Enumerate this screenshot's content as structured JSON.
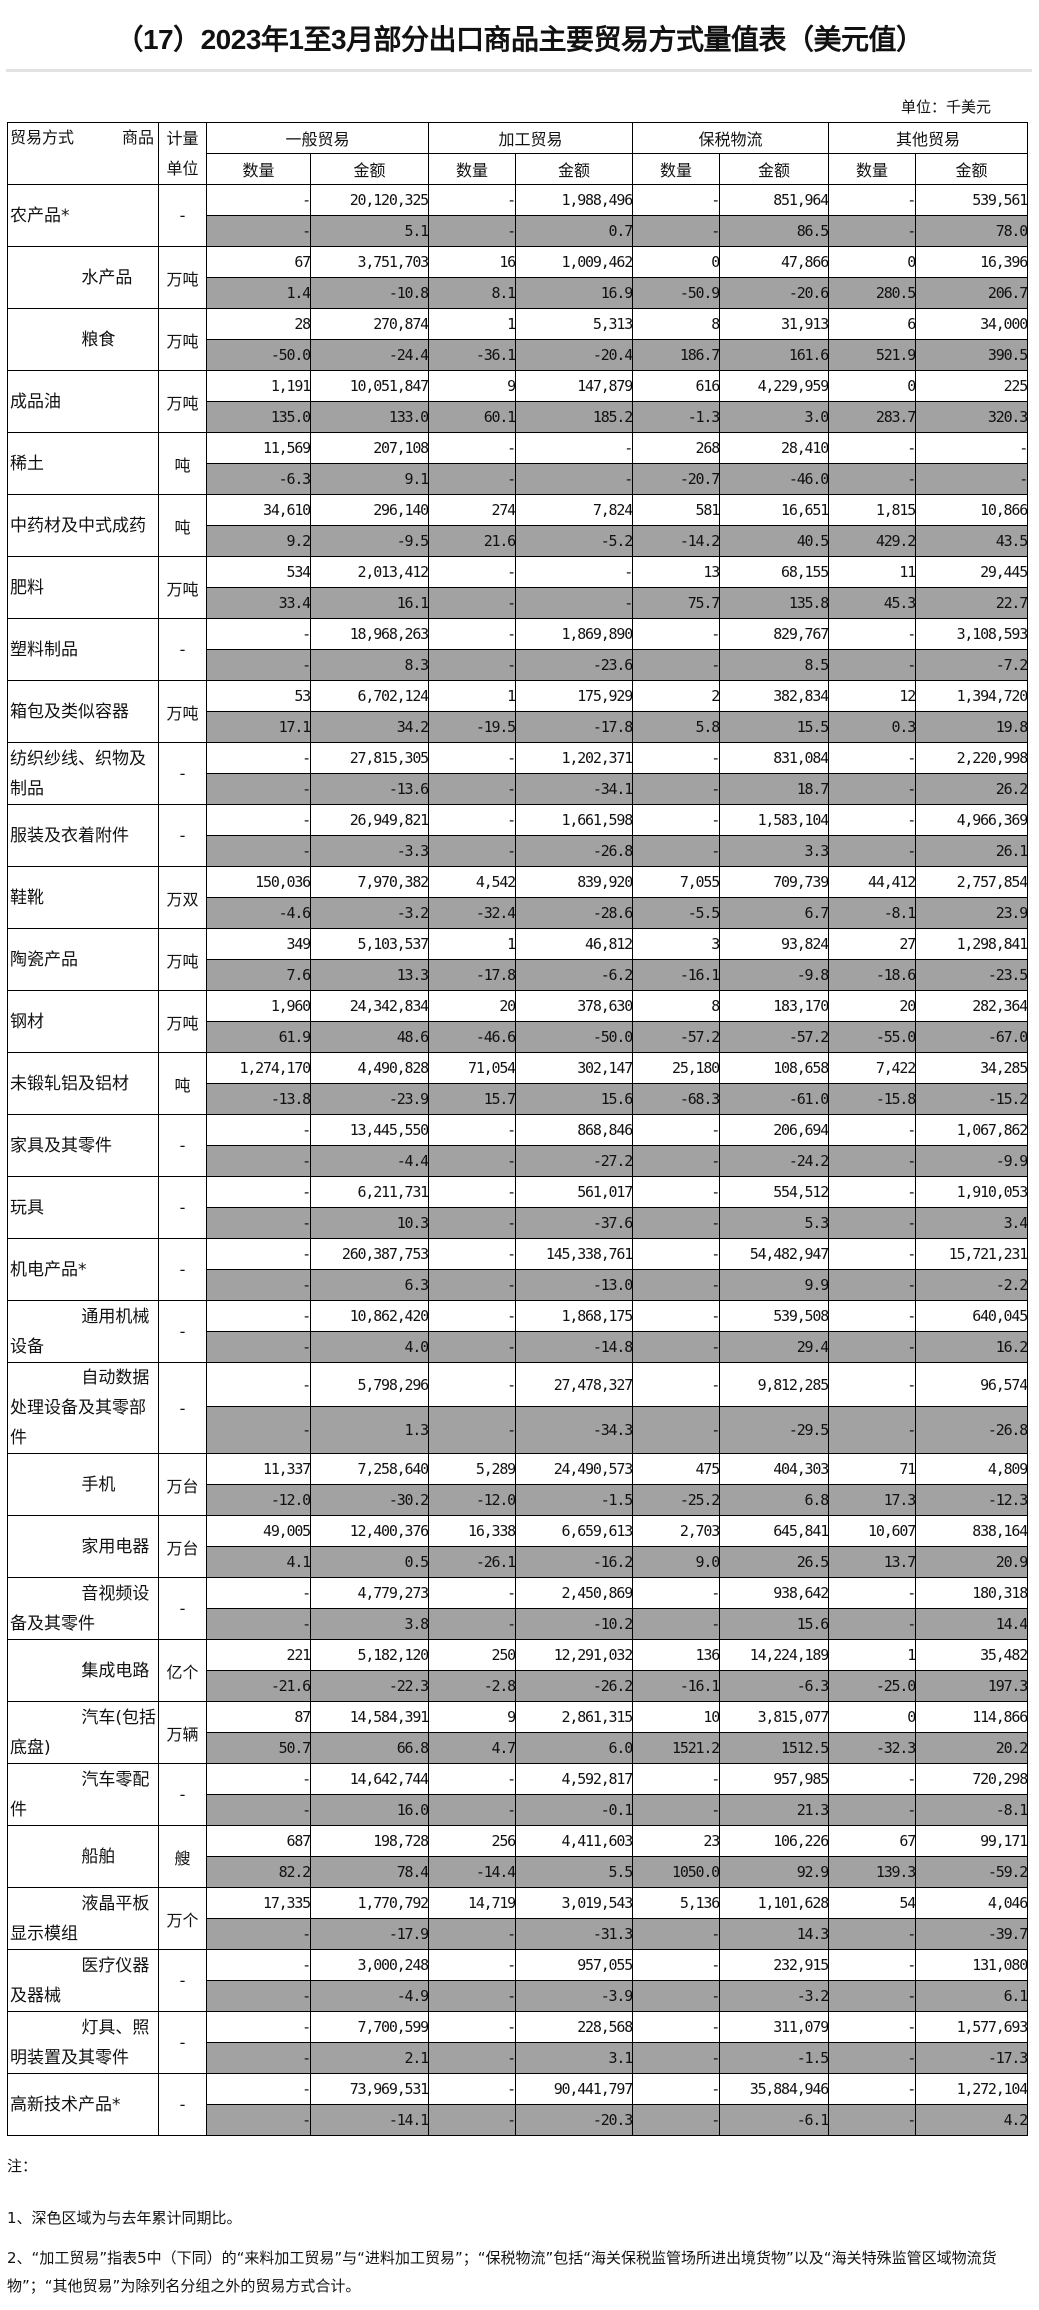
{
  "title": "（17）2023年1至3月部分出口商品主要贸易方式量值表（美元值）",
  "unit_note": "单位：千美元",
  "header": {
    "corner": "贸易方式　　　商品",
    "unit": "计量单位",
    "groups": [
      "一般贸易",
      "加工贸易",
      "保税物流",
      "其他贸易"
    ],
    "qty": "数量",
    "amount": "金额"
  },
  "highlight_color": "#a2a2a2",
  "items": [
    {
      "name": "农产品*",
      "sub": false,
      "unit": "-",
      "values": [
        "-",
        "20,120,325",
        "-",
        "1,988,496",
        "-",
        "851,964",
        "-",
        "539,561"
      ],
      "yoy": [
        "-",
        "5.1",
        "-",
        "0.7",
        "-",
        "86.5",
        "-",
        "78.0"
      ]
    },
    {
      "name": "水产品",
      "sub": true,
      "unit": "万吨",
      "values": [
        "67",
        "3,751,703",
        "16",
        "1,009,462",
        "0",
        "47,866",
        "0",
        "16,396"
      ],
      "yoy": [
        "1.4",
        "-10.8",
        "8.1",
        "16.9",
        "-50.9",
        "-20.6",
        "280.5",
        "206.7"
      ]
    },
    {
      "name": "粮食",
      "sub": true,
      "unit": "万吨",
      "values": [
        "28",
        "270,874",
        "1",
        "5,313",
        "8",
        "31,913",
        "6",
        "34,000"
      ],
      "yoy": [
        "-50.0",
        "-24.4",
        "-36.1",
        "-20.4",
        "186.7",
        "161.6",
        "521.9",
        "390.5"
      ]
    },
    {
      "name": "成品油",
      "sub": false,
      "unit": "万吨",
      "values": [
        "1,191",
        "10,051,847",
        "9",
        "147,879",
        "616",
        "4,229,959",
        "0",
        "225"
      ],
      "yoy": [
        "135.0",
        "133.0",
        "60.1",
        "185.2",
        "-1.3",
        "3.0",
        "283.7",
        "320.3"
      ]
    },
    {
      "name": "稀土",
      "sub": false,
      "unit": "吨",
      "values": [
        "11,569",
        "207,108",
        "-",
        "-",
        "268",
        "28,410",
        "-",
        "-"
      ],
      "yoy": [
        "-6.3",
        "9.1",
        "-",
        "-",
        "-20.7",
        "-46.0",
        "-",
        "-"
      ]
    },
    {
      "name": "中药材及中式成药",
      "sub": false,
      "unit": "吨",
      "values": [
        "34,610",
        "296,140",
        "274",
        "7,824",
        "581",
        "16,651",
        "1,815",
        "10,866"
      ],
      "yoy": [
        "9.2",
        "-9.5",
        "21.6",
        "-5.2",
        "-14.2",
        "40.5",
        "429.2",
        "43.5"
      ]
    },
    {
      "name": "肥料",
      "sub": false,
      "unit": "万吨",
      "values": [
        "534",
        "2,013,412",
        "-",
        "-",
        "13",
        "68,155",
        "11",
        "29,445"
      ],
      "yoy": [
        "33.4",
        "16.1",
        "-",
        "-",
        "75.7",
        "135.8",
        "45.3",
        "22.7"
      ]
    },
    {
      "name": "塑料制品",
      "sub": false,
      "unit": "-",
      "values": [
        "-",
        "18,968,263",
        "-",
        "1,869,890",
        "-",
        "829,767",
        "-",
        "3,108,593"
      ],
      "yoy": [
        "-",
        "8.3",
        "-",
        "-23.6",
        "-",
        "8.5",
        "-",
        "-7.2"
      ]
    },
    {
      "name": "箱包及类似容器",
      "sub": false,
      "unit": "万吨",
      "values": [
        "53",
        "6,702,124",
        "1",
        "175,929",
        "2",
        "382,834",
        "12",
        "1,394,720"
      ],
      "yoy": [
        "17.1",
        "34.2",
        "-19.5",
        "-17.8",
        "5.8",
        "15.5",
        "0.3",
        "19.8"
      ]
    },
    {
      "name": "纺织纱线、织物及制品",
      "sub": false,
      "unit": "-",
      "values": [
        "-",
        "27,815,305",
        "-",
        "1,202,371",
        "-",
        "831,084",
        "-",
        "2,220,998"
      ],
      "yoy": [
        "-",
        "-13.6",
        "-",
        "-34.1",
        "-",
        "18.7",
        "-",
        "26.2"
      ]
    },
    {
      "name": "服装及衣着附件",
      "sub": false,
      "unit": "-",
      "values": [
        "-",
        "26,949,821",
        "-",
        "1,661,598",
        "-",
        "1,583,104",
        "-",
        "4,966,369"
      ],
      "yoy": [
        "-",
        "-3.3",
        "-",
        "-26.8",
        "-",
        "3.3",
        "-",
        "26.1"
      ]
    },
    {
      "name": "鞋靴",
      "sub": false,
      "unit": "万双",
      "values": [
        "150,036",
        "7,970,382",
        "4,542",
        "839,920",
        "7,055",
        "709,739",
        "44,412",
        "2,757,854"
      ],
      "yoy": [
        "-4.6",
        "-3.2",
        "-32.4",
        "-28.6",
        "-5.5",
        "6.7",
        "-8.1",
        "23.9"
      ]
    },
    {
      "name": "陶瓷产品",
      "sub": false,
      "unit": "万吨",
      "values": [
        "349",
        "5,103,537",
        "1",
        "46,812",
        "3",
        "93,824",
        "27",
        "1,298,841"
      ],
      "yoy": [
        "7.6",
        "13.3",
        "-17.8",
        "-6.2",
        "-16.1",
        "-9.8",
        "-18.6",
        "-23.5"
      ]
    },
    {
      "name": "钢材",
      "sub": false,
      "unit": "万吨",
      "values": [
        "1,960",
        "24,342,834",
        "20",
        "378,630",
        "8",
        "183,170",
        "20",
        "282,364"
      ],
      "yoy": [
        "61.9",
        "48.6",
        "-46.6",
        "-50.0",
        "-57.2",
        "-57.2",
        "-55.0",
        "-67.0"
      ]
    },
    {
      "name": "未锻轧铝及铝材",
      "sub": false,
      "unit": "吨",
      "values": [
        "1,274,170",
        "4,490,828",
        "71,054",
        "302,147",
        "25,180",
        "108,658",
        "7,422",
        "34,285"
      ],
      "yoy": [
        "-13.8",
        "-23.9",
        "15.7",
        "15.6",
        "-68.3",
        "-61.0",
        "-15.8",
        "-15.2"
      ]
    },
    {
      "name": "家具及其零件",
      "sub": false,
      "unit": "-",
      "values": [
        "-",
        "13,445,550",
        "-",
        "868,846",
        "-",
        "206,694",
        "-",
        "1,067,862"
      ],
      "yoy": [
        "-",
        "-4.4",
        "-",
        "-27.2",
        "-",
        "-24.2",
        "-",
        "-9.9"
      ]
    },
    {
      "name": "玩具",
      "sub": false,
      "unit": "-",
      "values": [
        "-",
        "6,211,731",
        "-",
        "561,017",
        "-",
        "554,512",
        "-",
        "1,910,053"
      ],
      "yoy": [
        "-",
        "10.3",
        "-",
        "-37.6",
        "-",
        "5.3",
        "-",
        "3.4"
      ]
    },
    {
      "name": "机电产品*",
      "sub": false,
      "unit": "-",
      "values": [
        "-",
        "260,387,753",
        "-",
        "145,338,761",
        "-",
        "54,482,947",
        "-",
        "15,721,231"
      ],
      "yoy": [
        "-",
        "6.3",
        "-",
        "-13.0",
        "-",
        "9.9",
        "-",
        "-2.2"
      ]
    },
    {
      "name": "通用机械设备",
      "sub": true,
      "unit": "-",
      "values": [
        "-",
        "10,862,420",
        "-",
        "1,868,175",
        "-",
        "539,508",
        "-",
        "640,045"
      ],
      "yoy": [
        "-",
        "4.0",
        "-",
        "-14.8",
        "-",
        "29.4",
        "-",
        "16.2"
      ]
    },
    {
      "name": "自动数据处理设备及其零部件",
      "sub": true,
      "tall": true,
      "unit": "-",
      "values": [
        "-",
        "5,798,296",
        "-",
        "27,478,327",
        "-",
        "9,812,285",
        "-",
        "96,574"
      ],
      "yoy": [
        "-",
        "1.3",
        "-",
        "-34.3",
        "-",
        "-29.5",
        "-",
        "-26.8"
      ]
    },
    {
      "name": "手机",
      "sub": true,
      "unit": "万台",
      "values": [
        "11,337",
        "7,258,640",
        "5,289",
        "24,490,573",
        "475",
        "404,303",
        "71",
        "4,809"
      ],
      "yoy": [
        "-12.0",
        "-30.2",
        "-12.0",
        "-1.5",
        "-25.2",
        "6.8",
        "17.3",
        "-12.3"
      ]
    },
    {
      "name": "家用电器",
      "sub": true,
      "unit": "万台",
      "values": [
        "49,005",
        "12,400,376",
        "16,338",
        "6,659,613",
        "2,703",
        "645,841",
        "10,607",
        "838,164"
      ],
      "yoy": [
        "4.1",
        "0.5",
        "-26.1",
        "-16.2",
        "9.0",
        "26.5",
        "13.7",
        "20.9"
      ]
    },
    {
      "name": "音视频设备及其零件",
      "sub": true,
      "unit": "-",
      "values": [
        "-",
        "4,779,273",
        "-",
        "2,450,869",
        "-",
        "938,642",
        "-",
        "180,318"
      ],
      "yoy": [
        "-",
        "3.8",
        "-",
        "-10.2",
        "-",
        "15.6",
        "-",
        "14.4"
      ]
    },
    {
      "name": "集成电路",
      "sub": true,
      "unit": "亿个",
      "values": [
        "221",
        "5,182,120",
        "250",
        "12,291,032",
        "136",
        "14,224,189",
        "1",
        "35,482"
      ],
      "yoy": [
        "-21.6",
        "-22.3",
        "-2.8",
        "-26.2",
        "-16.1",
        "-6.3",
        "-25.0",
        "197.3"
      ]
    },
    {
      "name": "汽车(包括底盘)",
      "sub": true,
      "unit": "万辆",
      "values": [
        "87",
        "14,584,391",
        "9",
        "2,861,315",
        "10",
        "3,815,077",
        "0",
        "114,866"
      ],
      "yoy": [
        "50.7",
        "66.8",
        "4.7",
        "6.0",
        "1521.2",
        "1512.5",
        "-32.3",
        "20.2"
      ]
    },
    {
      "name": "汽车零配件",
      "sub": true,
      "unit": "-",
      "values": [
        "-",
        "14,642,744",
        "-",
        "4,592,817",
        "-",
        "957,985",
        "-",
        "720,298"
      ],
      "yoy": [
        "-",
        "16.0",
        "-",
        "-0.1",
        "-",
        "21.3",
        "-",
        "-8.1"
      ]
    },
    {
      "name": "船舶",
      "sub": true,
      "unit": "艘",
      "values": [
        "687",
        "198,728",
        "256",
        "4,411,603",
        "23",
        "106,226",
        "67",
        "99,171"
      ],
      "yoy": [
        "82.2",
        "78.4",
        "-14.4",
        "5.5",
        "1050.0",
        "92.9",
        "139.3",
        "-59.2"
      ]
    },
    {
      "name": "液晶平板显示模组",
      "sub": true,
      "unit": "万个",
      "values": [
        "17,335",
        "1,770,792",
        "14,719",
        "3,019,543",
        "5,136",
        "1,101,628",
        "54",
        "4,046"
      ],
      "yoy": [
        "-",
        "-17.9",
        "-",
        "-31.3",
        "-",
        "14.3",
        "-",
        "-39.7"
      ]
    },
    {
      "name": "医疗仪器及器械",
      "sub": true,
      "unit": "-",
      "values": [
        "-",
        "3,000,248",
        "-",
        "957,055",
        "-",
        "232,915",
        "-",
        "131,080"
      ],
      "yoy": [
        "-",
        "-4.9",
        "-",
        "-3.9",
        "-",
        "-3.2",
        "-",
        "6.1"
      ]
    },
    {
      "name": "灯具、照明装置及其零件",
      "sub": true,
      "unit": "-",
      "values": [
        "-",
        "7,700,599",
        "-",
        "228,568",
        "-",
        "311,079",
        "-",
        "1,577,693"
      ],
      "yoy": [
        "-",
        "2.1",
        "-",
        "3.1",
        "-",
        "-1.5",
        "-",
        "-17.3"
      ]
    },
    {
      "name": "高新技术产品*",
      "sub": false,
      "unit": "-",
      "values": [
        "-",
        "73,969,531",
        "-",
        "90,441,797",
        "-",
        "35,884,946",
        "-",
        "1,272,104"
      ],
      "yoy": [
        "-",
        "-14.1",
        "-",
        "-20.3",
        "-",
        "-6.1",
        "-",
        "4.2"
      ]
    }
  ],
  "notes": {
    "heading": "注：",
    "lines": [
      "1、深色区域为与去年累计同期比。",
      "2、“加工贸易”指表5中（下同）的“来料加工贸易”与“进料加工贸易”；“保税物流”包括“海关保税监管场所进出境货物”以及“海关特殊监管区域物流货物”；“其他贸易”为除列名分组之外的贸易方式合计。"
    ]
  }
}
